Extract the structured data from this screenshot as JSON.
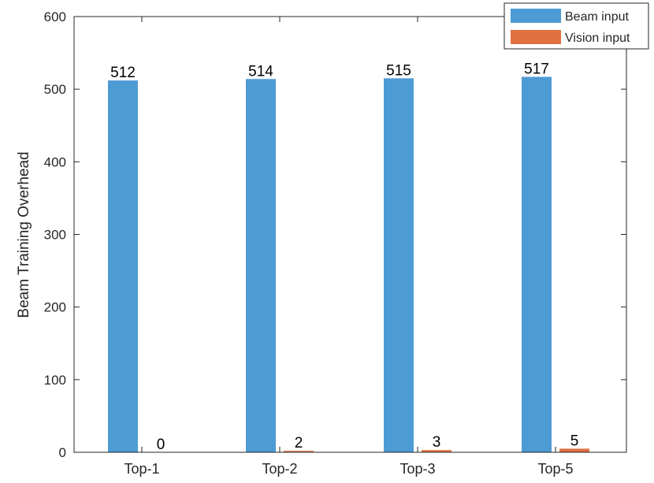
{
  "chart_data": {
    "type": "bar",
    "title": "",
    "xlabel": "",
    "ylabel": "Beam Training Overhead",
    "categories": [
      "Top-1",
      "Top-2",
      "Top-3",
      "Top-5"
    ],
    "series": [
      {
        "name": "Beam input",
        "values": [
          512,
          514,
          515,
          517
        ],
        "color": "#4d9bd4"
      },
      {
        "name": "Vision input",
        "values": [
          0,
          2,
          3,
          5
        ],
        "color": "#e07040"
      }
    ],
    "data_labels": {
      "series_0": [
        "512",
        "514",
        "515",
        "517"
      ],
      "series_1": [
        "0",
        "2",
        "3",
        "5"
      ]
    },
    "ylim": [
      0,
      600
    ],
    "yticks": [
      "0",
      "100",
      "200",
      "300",
      "400",
      "500",
      "600"
    ],
    "grid": false,
    "legend_position": "top-right"
  }
}
